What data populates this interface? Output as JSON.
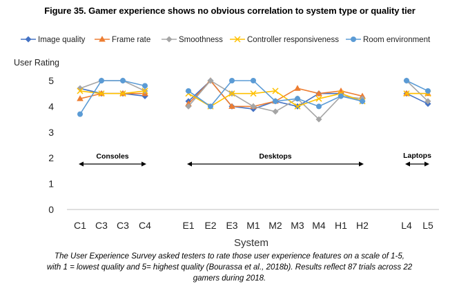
{
  "figure": {
    "title": "Figure 35. Gamer experience shows no obvious correlation to system type or quality tier",
    "caption_lines": [
      "The User Experience Survey asked testers to rate those user experience features on a scale of 1-5,",
      "with 1 = lowest quality and 5= highest quality (Bourassa et al., 2018b). Results reflect 87 trials across 22",
      "gamers during 2018."
    ]
  },
  "chart_data": {
    "type": "line",
    "title": "",
    "xlabel": "System",
    "ylabel": "User Rating",
    "ylim": [
      0,
      5
    ],
    "yticks": [
      0,
      1,
      2,
      3,
      4,
      5
    ],
    "grid": false,
    "legend_position": "top",
    "categories": [
      "C1",
      "C3",
      "C3",
      "C4",
      "E1",
      "E2",
      "E3",
      "M1",
      "M2",
      "M3",
      "M4",
      "H1",
      "H2",
      "L4",
      "L5"
    ],
    "groups": [
      {
        "label": "Consoles",
        "start": 0,
        "end": 3
      },
      {
        "label": "Desktops",
        "start": 4,
        "end": 12
      },
      {
        "label": "Laptops",
        "start": 13,
        "end": 14
      }
    ],
    "series": [
      {
        "name": "Image quality",
        "color": "#4472C4",
        "marker": "diamond",
        "values": [
          4.7,
          4.5,
          4.5,
          4.4,
          4.2,
          5.0,
          4.0,
          3.9,
          4.2,
          4.0,
          4.5,
          4.5,
          4.2,
          4.5,
          4.1
        ]
      },
      {
        "name": "Frame rate",
        "color": "#ED7D31",
        "marker": "triangle",
        "values": [
          4.3,
          4.5,
          4.5,
          4.5,
          4.1,
          5.0,
          4.0,
          4.0,
          4.2,
          4.7,
          4.5,
          4.6,
          4.4,
          4.5,
          4.5
        ]
      },
      {
        "name": "Smoothness",
        "color": "#A5A5A5",
        "marker": "diamond",
        "values": [
          4.7,
          5.0,
          5.0,
          4.6,
          4.0,
          5.0,
          4.5,
          4.0,
          3.8,
          4.3,
          3.5,
          4.4,
          4.3,
          5.0,
          4.2
        ]
      },
      {
        "name": "Controller responsiveness",
        "color": "#FFC000",
        "marker": "x",
        "values": [
          4.6,
          4.5,
          4.5,
          4.6,
          4.5,
          4.0,
          4.5,
          4.5,
          4.6,
          4.0,
          4.3,
          4.5,
          4.2,
          4.5,
          4.5
        ]
      },
      {
        "name": "Room environment",
        "color": "#5B9BD5",
        "marker": "circle",
        "values": [
          3.7,
          5.0,
          5.0,
          4.8,
          4.6,
          4.0,
          5.0,
          5.0,
          4.2,
          4.3,
          4.0,
          4.4,
          4.2,
          5.0,
          4.6
        ]
      }
    ]
  }
}
